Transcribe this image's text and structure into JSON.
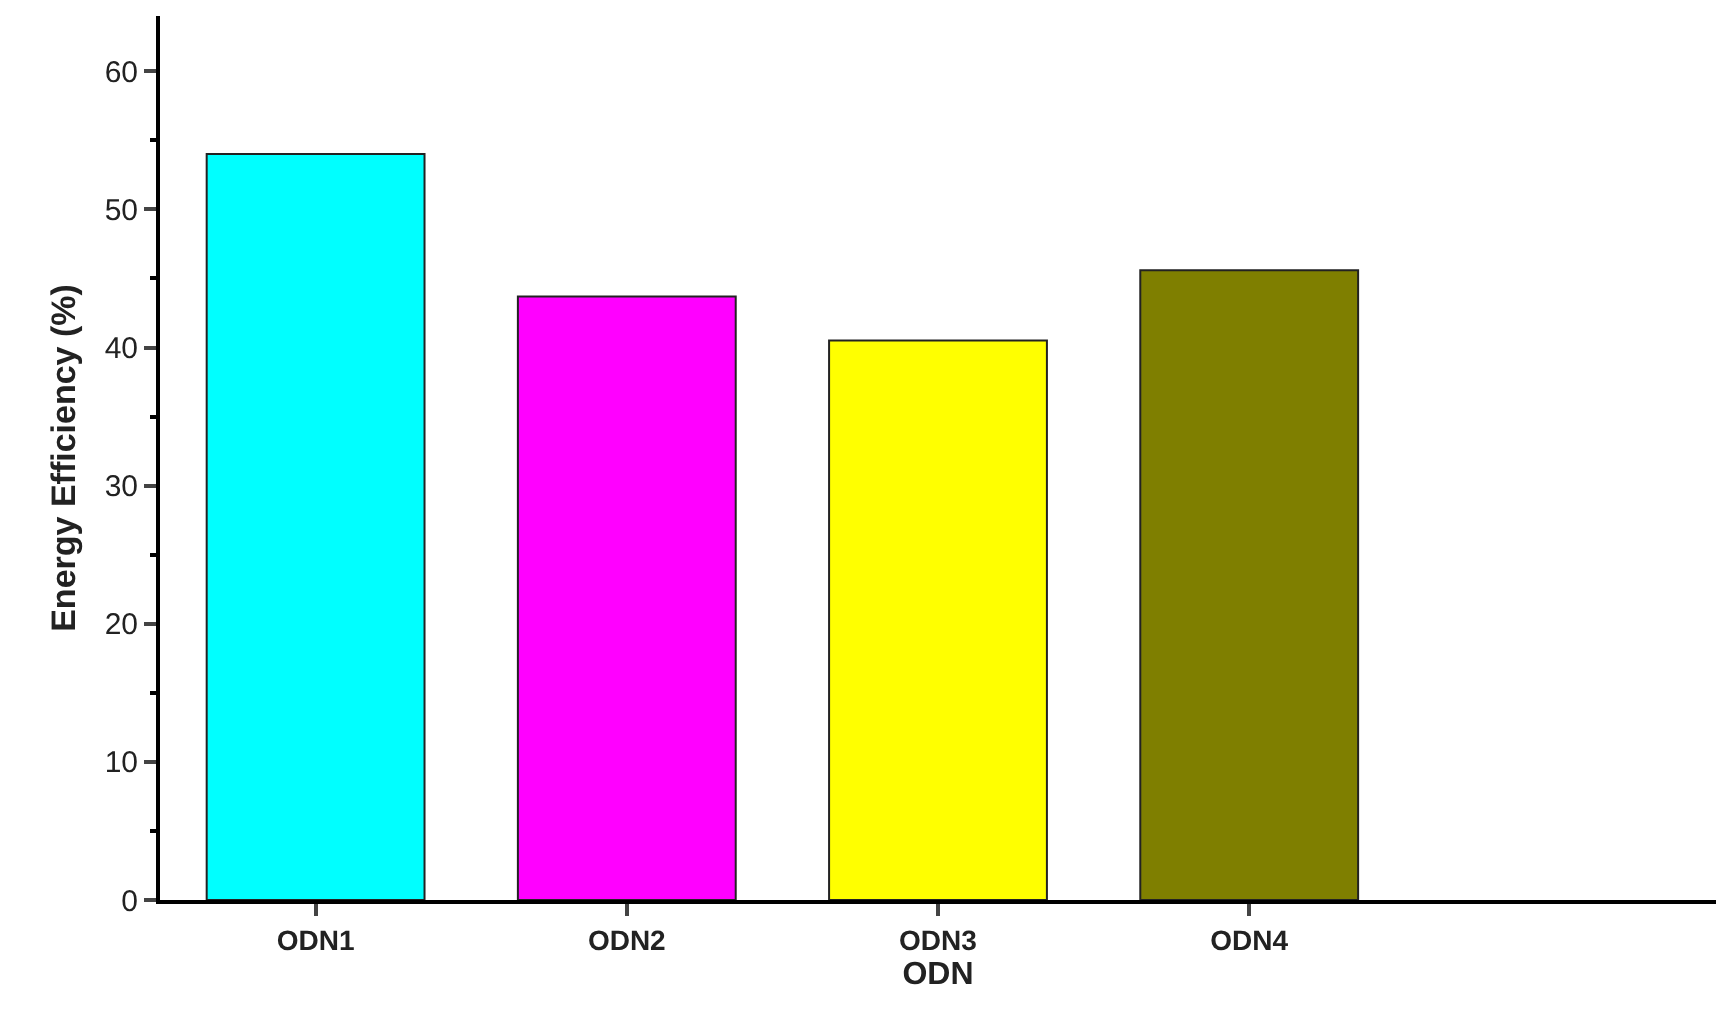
{
  "chart_data": {
    "type": "bar",
    "xlabel": "ODN",
    "ylabel": "Energy Efficiency (%)",
    "categories": [
      "ODN1",
      "ODN2",
      "ODN3",
      "ODN4",
      null
    ],
    "values": [
      54,
      43.7,
      40.5,
      45.6,
      null
    ],
    "colors": [
      "#00ffff",
      "#ff00ff",
      "#ffff00",
      "#7f7f00",
      "#ffffff"
    ],
    "ylim": [
      0,
      64
    ],
    "yticks": [
      0,
      10,
      20,
      30,
      40,
      50,
      60
    ]
  }
}
